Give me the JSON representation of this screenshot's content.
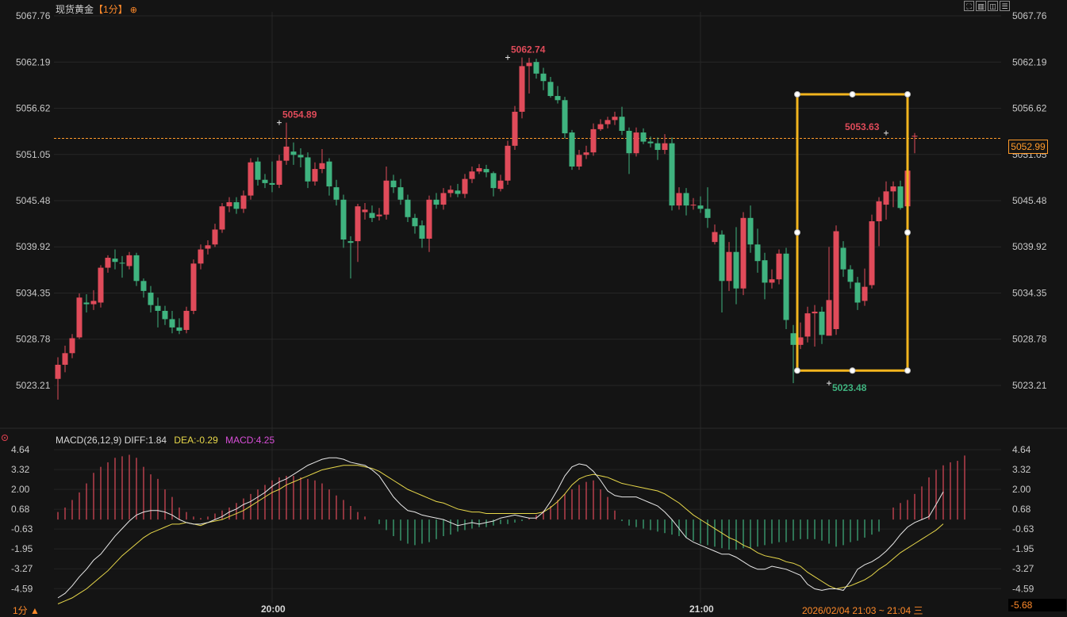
{
  "header": {
    "instrument": "现货黄金",
    "period": "【1分】",
    "crosshair_icon": "crosshair-circle-icon",
    "toolbar": [
      "expand-icon",
      "layout-icon",
      "split-icon",
      "menu-icon"
    ]
  },
  "footer": {
    "period_selector": "1分 ▲",
    "range": "2026/02/04 21:03 ~ 21:04 三"
  },
  "colors": {
    "up": "#e04b5a",
    "down": "#3fb37f",
    "diff": "#e8e8e8",
    "dea": "#e8d84a",
    "macd": "#d84ed8",
    "highlight": "#f2b51e",
    "current_price": "#ff9a2a"
  },
  "chart_data": [
    {
      "type": "candlestick",
      "y_axis_ticks": [
        "5067.76",
        "5062.19",
        "5056.62",
        "5051.05",
        "5045.48",
        "5039.92",
        "5034.35",
        "5028.78",
        "5023.21"
      ],
      "ylim": [
        5023.21,
        5067.76
      ],
      "x_ticks": [
        {
          "index": 30,
          "label": "20:00"
        },
        {
          "index": 90,
          "label": "21:00"
        }
      ],
      "current_price": "5052.99",
      "annotations": [
        {
          "index": 31,
          "value": 5054.89,
          "label": "5054.89"
        },
        {
          "index": 63,
          "value": 5062.74,
          "label": "5062.74"
        },
        {
          "index": 108,
          "value": 5023.48,
          "label": "5023.48"
        },
        {
          "index": 116,
          "value": 5053.63,
          "label": "5053.63"
        }
      ],
      "highlight_box": {
        "from_index": 104,
        "to_index": 117,
        "top": 5058.3,
        "bottom": 5025.0
      },
      "candles": [
        [
          5024.0,
          5025.7,
          5026.6,
          5021.5
        ],
        [
          5025.7,
          5027.1,
          5028.0,
          5024.8
        ],
        [
          5027.1,
          5028.9,
          5029.4,
          5026.5
        ],
        [
          5029.0,
          5033.8,
          5034.3,
          5028.8
        ],
        [
          5033.2,
          5033.0,
          5034.2,
          5032.0
        ],
        [
          5033.0,
          5033.4,
          5034.7,
          5032.3
        ],
        [
          5033.2,
          5037.4,
          5037.7,
          5032.6
        ],
        [
          5037.4,
          5038.6,
          5038.9,
          5036.8
        ],
        [
          5038.5,
          5038.1,
          5039.6,
          5037.2
        ],
        [
          5038.0,
          5037.9,
          5038.8,
          5036.2
        ],
        [
          5037.6,
          5038.9,
          5039.3,
          5037.2
        ],
        [
          5038.9,
          5035.8,
          5039.2,
          5035.2
        ],
        [
          5035.8,
          5034.6,
          5036.1,
          5033.8
        ],
        [
          5034.4,
          5032.9,
          5035.2,
          5032.0
        ],
        [
          5032.8,
          5032.2,
          5033.8,
          5030.2
        ],
        [
          5032.2,
          5031.2,
          5032.8,
          5030.5
        ],
        [
          5031.2,
          5030.2,
          5032.2,
          5029.5
        ],
        [
          5030.2,
          5029.8,
          5031.3,
          5029.4
        ],
        [
          5029.9,
          5032.2,
          5032.7,
          5029.5
        ],
        [
          5032.2,
          5037.9,
          5038.4,
          5031.8
        ],
        [
          5037.9,
          5039.6,
          5040.2,
          5037.2
        ],
        [
          5039.7,
          5040.1,
          5040.7,
          5039.0
        ],
        [
          5040.2,
          5042.0,
          5042.7,
          5039.9
        ],
        [
          5042.0,
          5044.8,
          5045.2,
          5041.6
        ],
        [
          5044.8,
          5045.3,
          5045.9,
          5044.1
        ],
        [
          5045.3,
          5044.5,
          5045.9,
          5043.9
        ],
        [
          5044.5,
          5046.1,
          5046.7,
          5044.0
        ],
        [
          5046.1,
          5050.1,
          5050.6,
          5045.6
        ],
        [
          5050.2,
          5048.0,
          5050.7,
          5047.3
        ],
        [
          5048.0,
          5047.6,
          5048.7,
          5047.0
        ],
        [
          5047.6,
          5047.4,
          5050.2,
          5046.5
        ],
        [
          5047.4,
          5050.3,
          5051.0,
          5047.0
        ],
        [
          5050.3,
          5052.0,
          5054.89,
          5049.8
        ],
        [
          5051.4,
          5051.0,
          5052.5,
          5049.8
        ],
        [
          5051.0,
          5050.7,
          5051.8,
          5049.5
        ],
        [
          5050.7,
          5047.8,
          5051.3,
          5047.0
        ],
        [
          5047.8,
          5049.3,
          5050.1,
          5047.3
        ],
        [
          5049.3,
          5050.0,
          5051.7,
          5048.8
        ],
        [
          5050.2,
          5047.2,
          5050.6,
          5046.1
        ],
        [
          5047.1,
          5045.6,
          5048.0,
          5044.9
        ],
        [
          5045.6,
          5040.8,
          5046.2,
          5039.8
        ],
        [
          5040.6,
          5040.4,
          5041.2,
          5036.1
        ],
        [
          5040.6,
          5044.8,
          5045.1,
          5038.1
        ],
        [
          5044.1,
          5044.4,
          5045.2,
          5043.2
        ],
        [
          5044.0,
          5043.4,
          5044.9,
          5042.9
        ],
        [
          5043.6,
          5043.8,
          5044.6,
          5043.1
        ],
        [
          5043.8,
          5047.9,
          5049.6,
          5043.2
        ],
        [
          5047.9,
          5047.1,
          5048.6,
          5046.4
        ],
        [
          5047.1,
          5045.6,
          5048.1,
          5045.0
        ],
        [
          5045.6,
          5043.5,
          5046.2,
          5042.9
        ],
        [
          5043.4,
          5042.4,
          5043.9,
          5041.5
        ],
        [
          5042.5,
          5040.9,
          5043.1,
          5039.8
        ],
        [
          5040.9,
          5045.6,
          5046.1,
          5039.3
        ],
        [
          5045.6,
          5045.0,
          5046.4,
          5044.5
        ],
        [
          5045.0,
          5046.4,
          5047.0,
          5044.4
        ],
        [
          5046.4,
          5046.8,
          5047.3,
          5045.9
        ],
        [
          5046.7,
          5046.3,
          5047.5,
          5045.9
        ],
        [
          5046.3,
          5048.1,
          5048.7,
          5045.8
        ],
        [
          5048.1,
          5049.0,
          5049.6,
          5047.6
        ],
        [
          5049.0,
          5049.4,
          5049.9,
          5048.7
        ],
        [
          5049.3,
          5048.9,
          5049.8,
          5048.3
        ],
        [
          5048.8,
          5047.0,
          5049.0,
          5046.0
        ],
        [
          5046.9,
          5047.9,
          5048.6,
          5046.6
        ],
        [
          5047.9,
          5052.1,
          5052.7,
          5047.4
        ],
        [
          5052.1,
          5056.2,
          5056.9,
          5051.6
        ],
        [
          5056.2,
          5061.7,
          5062.74,
          5055.4
        ],
        [
          5061.7,
          5062.1,
          5062.7,
          5058.4
        ],
        [
          5062.2,
          5060.8,
          5062.6,
          5060.2
        ],
        [
          5060.8,
          5059.9,
          5061.5,
          5058.8
        ],
        [
          5059.8,
          5058.1,
          5060.4,
          5057.9
        ],
        [
          5058.1,
          5057.6,
          5059.3,
          5057.2
        ],
        [
          5057.6,
          5053.6,
          5058.0,
          5053.0
        ],
        [
          5053.7,
          5049.6,
          5054.0,
          5049.2
        ],
        [
          5049.6,
          5051.0,
          5051.6,
          5049.2
        ],
        [
          5051.0,
          5051.3,
          5052.1,
          5050.5
        ],
        [
          5051.3,
          5054.1,
          5054.8,
          5050.9
        ],
        [
          5054.1,
          5054.7,
          5055.3,
          5053.9
        ],
        [
          5054.7,
          5055.2,
          5055.6,
          5054.2
        ],
        [
          5055.2,
          5055.6,
          5056.2,
          5054.6
        ],
        [
          5055.6,
          5053.9,
          5056.8,
          5053.4
        ],
        [
          5053.9,
          5051.2,
          5054.3,
          5048.7
        ],
        [
          5051.2,
          5053.7,
          5054.3,
          5050.8
        ],
        [
          5053.7,
          5052.6,
          5054.2,
          5052.3
        ],
        [
          5052.6,
          5052.4,
          5053.2,
          5051.9
        ],
        [
          5052.4,
          5051.6,
          5053.1,
          5050.4
        ],
        [
          5051.6,
          5052.4,
          5053.5,
          5051.1
        ],
        [
          5052.4,
          5044.9,
          5053.1,
          5044.3
        ],
        [
          5044.9,
          5046.4,
          5047.1,
          5044.4
        ],
        [
          5046.4,
          5044.9,
          5047.0,
          5043.7
        ],
        [
          5044.9,
          5045.0,
          5045.8,
          5044.4
        ],
        [
          5044.9,
          5044.5,
          5046.0,
          5044.0
        ],
        [
          5044.5,
          5043.4,
          5047.1,
          5042.2
        ],
        [
          5040.5,
          5041.7,
          5042.6,
          5040.2
        ],
        [
          5041.4,
          5035.8,
          5041.9,
          5032.0
        ],
        [
          5035.8,
          5039.3,
          5040.5,
          5034.6
        ],
        [
          5039.3,
          5034.9,
          5042.3,
          5033.0
        ],
        [
          5034.9,
          5043.4,
          5044.1,
          5034.1
        ],
        [
          5043.4,
          5040.2,
          5044.9,
          5039.2
        ],
        [
          5040.2,
          5038.2,
          5042.1,
          5036.8
        ],
        [
          5038.3,
          5035.6,
          5039.2,
          5033.6
        ],
        [
          5035.6,
          5036.0,
          5037.2,
          5034.9
        ],
        [
          5036.0,
          5039.1,
          5039.6,
          5035.4
        ],
        [
          5039.1,
          5031.1,
          5039.8,
          5030.0
        ],
        [
          5029.5,
          5028.1,
          5030.5,
          5023.48
        ],
        [
          5028.1,
          5029.0,
          5030.8,
          5027.6
        ],
        [
          5029.1,
          5031.9,
          5032.7,
          5028.4
        ],
        [
          5031.9,
          5032.1,
          5032.9,
          5027.9
        ],
        [
          5032.1,
          5029.3,
          5032.7,
          5028.2
        ],
        [
          5029.2,
          5033.5,
          5039.9,
          5029.4
        ],
        [
          5030.0,
          5041.8,
          5042.5,
          5029.3
        ],
        [
          5039.8,
          5037.2,
          5040.6,
          5036.3
        ],
        [
          5037.2,
          5035.7,
          5037.7,
          5034.9
        ],
        [
          5035.6,
          5033.2,
          5036.3,
          5032.3
        ],
        [
          5033.4,
          5035.1,
          5037.3,
          5032.8
        ],
        [
          5035.3,
          5043.0,
          5043.8,
          5034.9
        ],
        [
          5043.0,
          5045.4,
          5045.9,
          5040.0
        ],
        [
          5045.0,
          5046.6,
          5047.8,
          5043.2
        ],
        [
          5046.6,
          5047.2,
          5047.8,
          5044.7
        ],
        [
          5047.2,
          5044.6,
          5047.9,
          5044.4
        ],
        [
          5044.8,
          5049.1,
          5049.6,
          5042.3
        ],
        [
          5053.2,
          5053.3,
          5053.63,
          5051.2
        ]
      ]
    },
    {
      "type": "bar+line",
      "title": "MACD(26,12,9)",
      "legend": {
        "diff": "DIFF:1.84",
        "dea": "DEA:-0.29",
        "macd": "MACD:4.25"
      },
      "y_axis_ticks": [
        "4.64",
        "3.32",
        "2.00",
        "0.68",
        "-0.63",
        "-1.95",
        "-3.27",
        "-4.59"
      ],
      "min_label": "-5.68",
      "ylim": [
        -5.68,
        4.64
      ],
      "diff": [
        -5.2,
        -4.9,
        -4.4,
        -3.8,
        -3.3,
        -2.7,
        -2.3,
        -1.7,
        -1.1,
        -0.6,
        -0.1,
        0.3,
        0.5,
        0.6,
        0.6,
        0.5,
        0.3,
        0.0,
        -0.2,
        -0.3,
        -0.3,
        -0.2,
        0.0,
        0.2,
        0.5,
        0.7,
        1.0,
        1.2,
        1.5,
        1.8,
        2.2,
        2.5,
        2.7,
        3.0,
        3.3,
        3.6,
        3.8,
        4.0,
        4.1,
        4.1,
        4.0,
        3.8,
        3.7,
        3.6,
        3.3,
        2.9,
        2.2,
        1.5,
        1.0,
        0.6,
        0.5,
        0.3,
        0.2,
        0.1,
        0.0,
        -0.2,
        -0.4,
        -0.3,
        -0.2,
        -0.3,
        -0.2,
        -0.1,
        0.1,
        0.2,
        0.3,
        0.2,
        0.1,
        0.1,
        0.5,
        1.2,
        2.0,
        2.9,
        3.5,
        3.7,
        3.6,
        3.2,
        2.6,
        1.9,
        1.6,
        1.5,
        1.5,
        1.5,
        1.3,
        1.1,
        0.9,
        0.5,
        0.0,
        -0.6,
        -1.2,
        -1.5,
        -1.7,
        -1.9,
        -2.1,
        -2.3,
        -2.3,
        -2.5,
        -2.8,
        -3.1,
        -3.3,
        -3.3,
        -3.1,
        -3.2,
        -3.3,
        -3.5,
        -3.7,
        -4.3,
        -4.6,
        -4.7,
        -4.6,
        -4.6,
        -4.7,
        -4.1,
        -3.3,
        -3.0,
        -2.8,
        -2.5,
        -2.1,
        -1.6,
        -1.0,
        -0.5,
        -0.2,
        0.0,
        0.2,
        1.0,
        1.84
      ],
      "dea": [
        -5.6,
        -5.4,
        -5.2,
        -4.9,
        -4.6,
        -4.2,
        -3.8,
        -3.4,
        -2.9,
        -2.4,
        -2.0,
        -1.6,
        -1.2,
        -0.9,
        -0.7,
        -0.5,
        -0.3,
        -0.3,
        -0.2,
        -0.3,
        -0.4,
        -0.2,
        -0.1,
        0.0,
        0.2,
        0.4,
        0.6,
        0.9,
        1.2,
        1.5,
        1.8,
        2.0,
        2.3,
        2.5,
        2.7,
        2.9,
        3.1,
        3.3,
        3.4,
        3.5,
        3.6,
        3.6,
        3.6,
        3.5,
        3.4,
        3.2,
        2.9,
        2.6,
        2.3,
        2.0,
        1.8,
        1.6,
        1.4,
        1.2,
        1.1,
        0.9,
        0.7,
        0.6,
        0.5,
        0.5,
        0.4,
        0.4,
        0.4,
        0.4,
        0.4,
        0.4,
        0.4,
        0.4,
        0.5,
        0.8,
        1.2,
        1.7,
        2.3,
        2.7,
        2.9,
        3.0,
        2.9,
        2.8,
        2.6,
        2.4,
        2.3,
        2.2,
        2.1,
        2.0,
        1.9,
        1.7,
        1.4,
        1.1,
        0.7,
        0.3,
        0.0,
        -0.3,
        -0.6,
        -0.9,
        -1.2,
        -1.4,
        -1.7,
        -1.9,
        -2.2,
        -2.4,
        -2.5,
        -2.6,
        -2.8,
        -2.9,
        -3.1,
        -3.5,
        -3.8,
        -4.1,
        -4.4,
        -4.6,
        -4.5,
        -4.4,
        -4.2,
        -4.0,
        -3.7,
        -3.3,
        -3.0,
        -2.6,
        -2.2,
        -1.9,
        -1.6,
        -1.3,
        -1.0,
        -0.7,
        -0.29
      ],
      "macd": [
        0.5,
        0.8,
        1.3,
        1.8,
        2.4,
        3.1,
        3.5,
        3.8,
        4.1,
        4.2,
        4.3,
        4.1,
        3.5,
        3.0,
        2.7,
        2.0,
        1.5,
        0.8,
        0.5,
        0.2,
        0.1,
        0.2,
        0.4,
        0.6,
        0.8,
        1.1,
        1.4,
        1.7,
        2.0,
        2.3,
        2.6,
        2.8,
        2.9,
        2.9,
        2.8,
        2.7,
        2.6,
        2.4,
        2.0,
        1.6,
        1.3,
        0.9,
        0.5,
        0.2,
        0.0,
        -0.3,
        -0.7,
        -1.1,
        -1.4,
        -1.6,
        -1.7,
        -1.6,
        -1.5,
        -1.3,
        -1.1,
        -1.0,
        -0.8,
        -0.7,
        -0.6,
        -0.5,
        -0.5,
        -0.4,
        -0.3,
        -0.3,
        -0.2,
        -0.1,
        0.1,
        0.3,
        0.6,
        0.9,
        1.3,
        1.7,
        2.0,
        2.3,
        2.5,
        2.6,
        2.0,
        1.5,
        0.6,
        -0.1,
        -0.4,
        -0.5,
        -0.6,
        -0.7,
        -0.8,
        -0.9,
        -1.0,
        -1.1,
        -1.2,
        -1.4,
        -1.6,
        -1.7,
        -1.8,
        -1.9,
        -2.0,
        -2.0,
        -1.9,
        -1.9,
        -1.8,
        -1.7,
        -1.6,
        -1.5,
        -1.5,
        -1.4,
        -1.3,
        -1.3,
        -1.3,
        -1.4,
        -1.6,
        -1.8,
        -1.7,
        -1.5,
        -1.4,
        -1.2,
        -1.0,
        -0.8,
        0.0,
        0.8,
        1.1,
        1.3,
        1.7,
        2.2,
        2.8,
        3.3,
        3.6,
        3.8,
        3.9,
        4.25
      ]
    }
  ]
}
